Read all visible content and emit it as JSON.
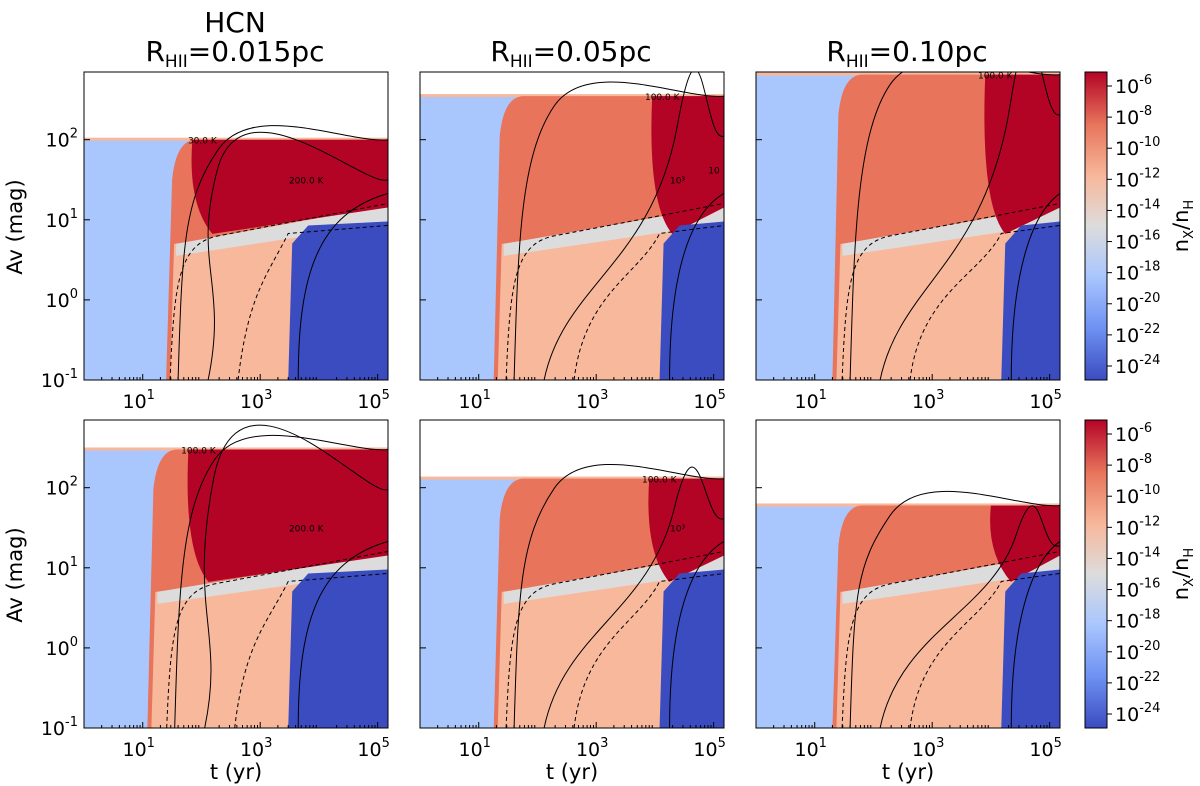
{
  "figure": {
    "species": "HCN",
    "columns": [
      {
        "label_main": "R",
        "label_sub": "HII",
        "label_value": "=0.015pc"
      },
      {
        "label_main": "R",
        "label_sub": "HII",
        "label_value": "=0.05pc"
      },
      {
        "label_main": "R",
        "label_sub": "HII",
        "label_value": "=0.10pc"
      }
    ],
    "xlabel": "t (yr)",
    "ylabel": "Av (mag)",
    "colorbar_label": {
      "n": "n",
      "x_sub": "X",
      "slash": "/n",
      "h_sub": "H"
    }
  },
  "chart_data": {
    "type": "heatmap",
    "title": "HCN",
    "xscale": "log",
    "yscale": "log",
    "xlim": [
      1,
      150000
    ],
    "ylim": [
      0.1,
      700
    ],
    "x_ticks": [
      {
        "value": 10,
        "base": "10",
        "exp": "1"
      },
      {
        "value": 1000,
        "base": "10",
        "exp": "3"
      },
      {
        "value": 100000,
        "base": "10",
        "exp": "5"
      }
    ],
    "y_ticks": [
      {
        "value": 0.1,
        "base": "10",
        "exp": "-1"
      },
      {
        "value": 1,
        "base": "10",
        "exp": "0"
      },
      {
        "value": 10,
        "base": "10",
        "exp": "1"
      },
      {
        "value": 100,
        "base": "10",
        "exp": "2"
      }
    ],
    "colorbar": {
      "scale": "log",
      "range": [
        1e-25,
        1e-06
      ],
      "ticks": [
        {
          "base": "10",
          "exp": "-6"
        },
        {
          "base": "10",
          "exp": "-8"
        },
        {
          "base": "10",
          "exp": "-10"
        },
        {
          "base": "10",
          "exp": "-12"
        },
        {
          "base": "10",
          "exp": "-14"
        },
        {
          "base": "10",
          "exp": "-16"
        },
        {
          "base": "10",
          "exp": "-18"
        },
        {
          "base": "10",
          "exp": "-20"
        },
        {
          "base": "10",
          "exp": "-22"
        },
        {
          "base": "10",
          "exp": "-24"
        }
      ],
      "colors": [
        "#3b4cc0",
        "#6f92f3",
        "#aac7fd",
        "#dddcdc",
        "#f7b89c",
        "#e7745b",
        "#b40426"
      ]
    },
    "panels": [
      {
        "row": 1,
        "col": 1,
        "av_max": 100,
        "ice_edge_t": 25,
        "abundance_rise_t": 40,
        "dense_region_t": 70,
        "depleted_t": 3000,
        "contour_labels": [
          "30.0 K",
          "200.0 K"
        ]
      },
      {
        "row": 1,
        "col": 2,
        "av_max": 350,
        "ice_edge_t": 18,
        "abundance_rise_t": 40,
        "dense_region_t": 9000,
        "depleted_t": 12000,
        "contour_labels": [
          "100.0 K",
          "10³",
          "10"
        ]
      },
      {
        "row": 1,
        "col": 3,
        "av_max": 650,
        "ice_edge_t": 20,
        "abundance_rise_t": 40,
        "dense_region_t": 8000,
        "depleted_t": 15000,
        "contour_labels": [
          "100.0 K"
        ]
      },
      {
        "row": 2,
        "col": 1,
        "av_max": 300,
        "ice_edge_t": 12,
        "abundance_rise_t": 35,
        "dense_region_t": 60,
        "depleted_t": 3000,
        "contour_labels": [
          "100.0 K",
          "200.0 K"
        ]
      },
      {
        "row": 2,
        "col": 2,
        "av_max": 130,
        "ice_edge_t": 18,
        "abundance_rise_t": 40,
        "dense_region_t": 8000,
        "depleted_t": 12000,
        "contour_labels": [
          "100.0 K",
          "10³"
        ]
      },
      {
        "row": 2,
        "col": 3,
        "av_max": 60,
        "ice_edge_t": 20,
        "abundance_rise_t": 40,
        "dense_region_t": 10000,
        "depleted_t": 15000,
        "contour_labels": []
      }
    ]
  }
}
